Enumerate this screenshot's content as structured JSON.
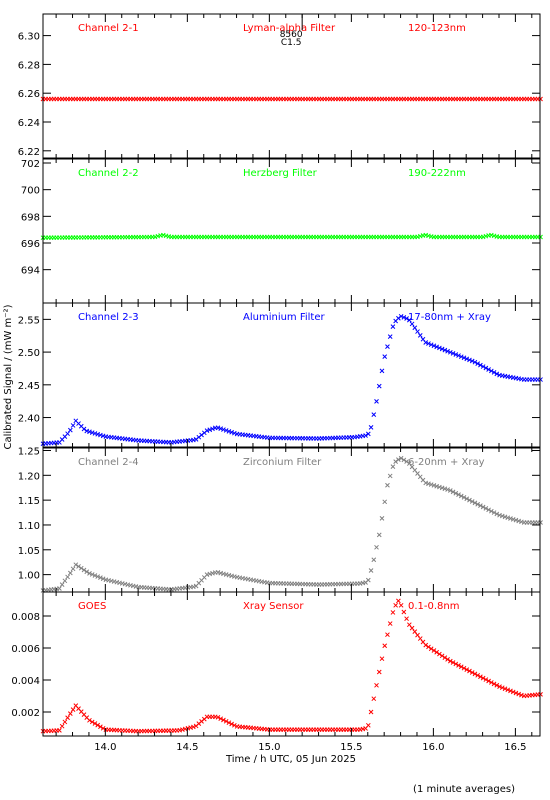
{
  "figure": {
    "ylabel": "Calibrated Signal / (mW m⁻²)",
    "xlabel": "Time / h UTC, 05 Jun 2025",
    "footnote": "(1 minute averages)",
    "marker": {
      "line1": "8560",
      "line2": "C1.5",
      "time": 15.2
    }
  },
  "chart_data": [
    {
      "type": "scatter",
      "labels": [
        "Channel 2-1",
        "Lyman-alpha Filter",
        "120-123nm"
      ],
      "color": "#ff0000",
      "ylim": [
        6.215,
        6.315
      ],
      "yticks": [
        6.22,
        6.24,
        6.26,
        6.28,
        6.3
      ],
      "ytick_labels": [
        "6.22",
        "6.24",
        "6.26",
        "6.28",
        "6.30"
      ],
      "keypoints": [
        [
          13.62,
          6.256
        ],
        [
          16.65,
          6.256
        ]
      ]
    },
    {
      "type": "scatter",
      "labels": [
        "Channel 2-2",
        "Herzberg Filter",
        "190-222nm"
      ],
      "color": "#00ff00",
      "ylim": [
        691.5,
        702.3
      ],
      "yticks": [
        694,
        696,
        698,
        700,
        702
      ],
      "ytick_labels": [
        "694",
        "696",
        "698",
        "700",
        "702"
      ],
      "keypoints": [
        [
          13.62,
          696.4
        ],
        [
          14.3,
          696.45
        ],
        [
          14.35,
          696.6
        ],
        [
          14.4,
          696.45
        ],
        [
          15.9,
          696.45
        ],
        [
          15.95,
          696.6
        ],
        [
          16.0,
          696.45
        ],
        [
          16.3,
          696.45
        ],
        [
          16.35,
          696.6
        ],
        [
          16.4,
          696.45
        ],
        [
          16.65,
          696.45
        ]
      ]
    },
    {
      "type": "scatter",
      "labels": [
        "Channel 2-3",
        "Aluminium Filter",
        "17-80nm + Xray"
      ],
      "color": "#0000ff",
      "ylim": [
        2.355,
        2.575
      ],
      "yticks": [
        2.4,
        2.45,
        2.5,
        2.55
      ],
      "ytick_labels": [
        "2.40",
        "2.45",
        "2.50",
        "2.55"
      ],
      "keypoints": [
        [
          13.62,
          2.36
        ],
        [
          13.72,
          2.362
        ],
        [
          13.78,
          2.378
        ],
        [
          13.82,
          2.395
        ],
        [
          13.88,
          2.38
        ],
        [
          14.0,
          2.371
        ],
        [
          14.2,
          2.365
        ],
        [
          14.4,
          2.362
        ],
        [
          14.55,
          2.366
        ],
        [
          14.62,
          2.38
        ],
        [
          14.68,
          2.385
        ],
        [
          14.8,
          2.375
        ],
        [
          15.0,
          2.369
        ],
        [
          15.3,
          2.368
        ],
        [
          15.52,
          2.37
        ],
        [
          15.6,
          2.373
        ],
        [
          15.62,
          2.385
        ],
        [
          15.65,
          2.42
        ],
        [
          15.7,
          2.49
        ],
        [
          15.76,
          2.545
        ],
        [
          15.8,
          2.555
        ],
        [
          15.85,
          2.55
        ],
        [
          15.95,
          2.515
        ],
        [
          16.1,
          2.5
        ],
        [
          16.25,
          2.485
        ],
        [
          16.4,
          2.465
        ],
        [
          16.55,
          2.458
        ],
        [
          16.65,
          2.458
        ]
      ]
    },
    {
      "type": "scatter",
      "labels": [
        "Channel 2-4",
        "Zirconium Filter",
        "6-20nm + Xray"
      ],
      "color": "#808080",
      "ylim": [
        0.965,
        1.255
      ],
      "yticks": [
        1.0,
        1.05,
        1.1,
        1.15,
        1.2,
        1.25
      ],
      "ytick_labels": [
        "1.00",
        "1.05",
        "1.10",
        "1.15",
        "1.20",
        "1.25"
      ],
      "keypoints": [
        [
          13.62,
          0.968
        ],
        [
          13.72,
          0.972
        ],
        [
          13.78,
          1.0
        ],
        [
          13.82,
          1.02
        ],
        [
          13.9,
          1.003
        ],
        [
          14.0,
          0.99
        ],
        [
          14.2,
          0.975
        ],
        [
          14.4,
          0.97
        ],
        [
          14.55,
          0.976
        ],
        [
          14.62,
          1.0
        ],
        [
          14.68,
          1.005
        ],
        [
          14.8,
          0.995
        ],
        [
          15.0,
          0.983
        ],
        [
          15.3,
          0.98
        ],
        [
          15.55,
          0.982
        ],
        [
          15.6,
          0.985
        ],
        [
          15.63,
          1.02
        ],
        [
          15.67,
          1.08
        ],
        [
          15.72,
          1.18
        ],
        [
          15.76,
          1.225
        ],
        [
          15.8,
          1.235
        ],
        [
          15.85,
          1.225
        ],
        [
          15.95,
          1.185
        ],
        [
          16.1,
          1.17
        ],
        [
          16.25,
          1.145
        ],
        [
          16.4,
          1.12
        ],
        [
          16.55,
          1.105
        ],
        [
          16.65,
          1.105
        ]
      ]
    },
    {
      "type": "scatter",
      "labels": [
        "GOES",
        "Xray Sensor",
        "0.1-0.8nm"
      ],
      "color": "#ff0000",
      "ylim": [
        0.0005,
        0.0095
      ],
      "yticks": [
        0.002,
        0.004,
        0.006,
        0.008
      ],
      "ytick_labels": [
        "0.002",
        "0.004",
        "0.006",
        "0.008"
      ],
      "keypoints": [
        [
          13.62,
          0.0008
        ],
        [
          13.72,
          0.00085
        ],
        [
          13.78,
          0.0018
        ],
        [
          13.82,
          0.0024
        ],
        [
          13.9,
          0.0015
        ],
        [
          14.0,
          0.0009
        ],
        [
          14.2,
          0.0008
        ],
        [
          14.45,
          0.00085
        ],
        [
          14.55,
          0.0011
        ],
        [
          14.62,
          0.0017
        ],
        [
          14.68,
          0.0017
        ],
        [
          14.8,
          0.0011
        ],
        [
          15.0,
          0.0009
        ],
        [
          15.3,
          0.0009
        ],
        [
          15.55,
          0.0009
        ],
        [
          15.6,
          0.001
        ],
        [
          15.62,
          0.002
        ],
        [
          15.65,
          0.0035
        ],
        [
          15.7,
          0.006
        ],
        [
          15.76,
          0.0085
        ],
        [
          15.79,
          0.009
        ],
        [
          15.85,
          0.0075
        ],
        [
          15.95,
          0.0062
        ],
        [
          16.1,
          0.0052
        ],
        [
          16.25,
          0.0044
        ],
        [
          16.4,
          0.0036
        ],
        [
          16.55,
          0.003
        ],
        [
          16.65,
          0.0031
        ]
      ]
    }
  ],
  "xaxis": {
    "xlim": [
      13.62,
      16.65
    ],
    "ticks": [
      14.0,
      14.5,
      15.0,
      15.5,
      16.0,
      16.5
    ],
    "tick_labels": [
      "14.0",
      "14.5",
      "15.0",
      "15.5",
      "16.0",
      "16.5"
    ]
  }
}
